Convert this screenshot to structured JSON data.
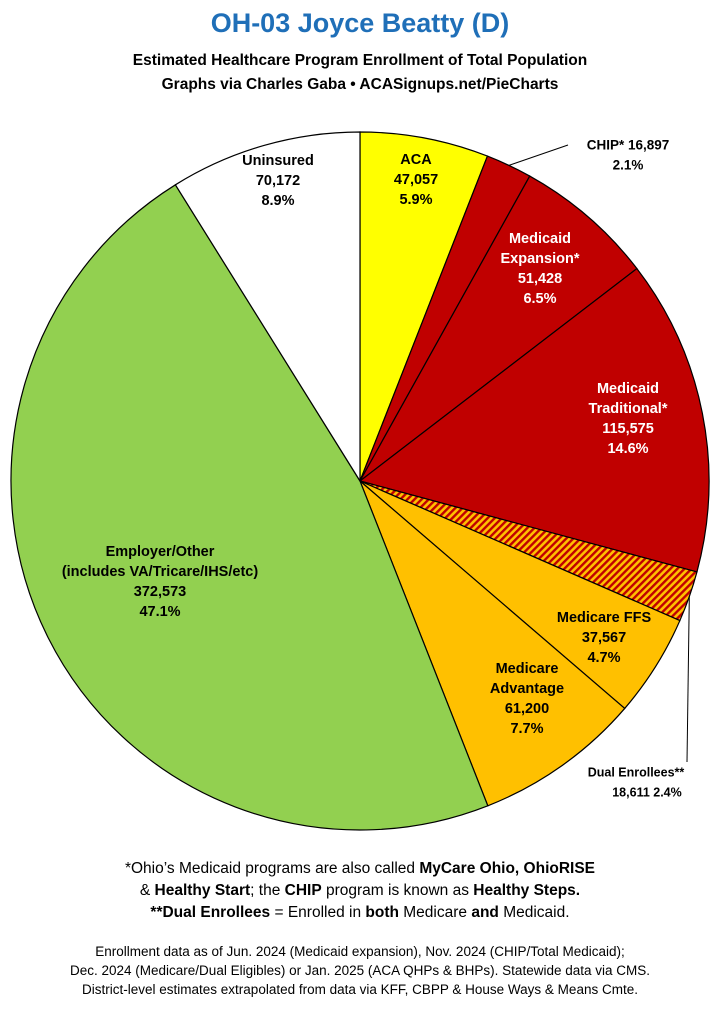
{
  "header": {
    "title": "OH-03 Joyce Beatty (D)",
    "subtitle_line1": "Estimated Healthcare Program Enrollment of Total Population",
    "subtitle_line2": "Graphs via Charles Gaba   •   ACASignups.net/PieCharts"
  },
  "chart_data": {
    "type": "pie",
    "start": "12 o'clock",
    "direction": "clockwise",
    "slices": [
      {
        "name": "ACA",
        "label_lines": [
          "ACA"
        ],
        "value": 47057,
        "value_text": "47,057",
        "percent": 5.9,
        "percent_text": "5.9%",
        "color": "#ffff00",
        "text_color": "#000000",
        "hatched": false
      },
      {
        "name": "CHIP*",
        "label_lines": [
          "CHIP* 16,897",
          "2.1%"
        ],
        "value": 16897,
        "value_text": "16,897",
        "percent": 2.1,
        "percent_text": "2.1%",
        "color": "#c00000",
        "text_color": "#000000",
        "hatched": false,
        "external_label": true
      },
      {
        "name": "Medicaid Expansion*",
        "label_lines": [
          "Medicaid",
          "Expansion*"
        ],
        "value": 51428,
        "value_text": "51,428",
        "percent": 6.5,
        "percent_text": "6.5%",
        "color": "#c00000",
        "text_color": "#ffffff",
        "hatched": false
      },
      {
        "name": "Medicaid Traditional*",
        "label_lines": [
          "Medicaid",
          "Traditional*"
        ],
        "value": 115575,
        "value_text": "115,575",
        "percent": 14.6,
        "percent_text": "14.6%",
        "color": "#c00000",
        "text_color": "#ffffff",
        "hatched": false
      },
      {
        "name": "Dual Enrollees**",
        "label_lines": [
          "Dual Enrollees**",
          "18,611 2.4%"
        ],
        "value": 18611,
        "value_text": "18,611",
        "percent": 2.4,
        "percent_text": "2.4%",
        "color": "#ffc000",
        "text_color": "#000000",
        "hatched": true,
        "hatch_color": "#c00000",
        "external_label": true
      },
      {
        "name": "Medicare FFS",
        "label_lines": [
          "Medicare FFS"
        ],
        "value": 37567,
        "value_text": "37,567",
        "percent": 4.7,
        "percent_text": "4.7%",
        "color": "#ffc000",
        "text_color": "#000000",
        "hatched": false
      },
      {
        "name": "Medicare Advantage",
        "label_lines": [
          "Medicare",
          "Advantage"
        ],
        "value": 61200,
        "value_text": "61,200",
        "percent": 7.7,
        "percent_text": "7.7%",
        "color": "#ffc000",
        "text_color": "#000000",
        "hatched": false
      },
      {
        "name": "Employer/Other",
        "label_lines": [
          "Employer/Other",
          "(includes VA/Tricare/IHS/etc)"
        ],
        "value": 372573,
        "value_text": "372,573",
        "percent": 47.1,
        "percent_text": "47.1%",
        "color": "#92d050",
        "text_color": "#000000",
        "hatched": false
      },
      {
        "name": "Uninsured",
        "label_lines": [
          "Uninsured"
        ],
        "value": 70172,
        "value_text": "70,172",
        "percent": 8.9,
        "percent_text": "8.9%",
        "color": "#ffffff",
        "text_color": "#000000",
        "hatched": false
      }
    ]
  },
  "notes": {
    "line1_a": "*Ohio’s Medicaid programs are also called ",
    "line1_b": "MyCare Ohio, OhioRISE",
    "line2_a": "& ",
    "line2_b": "Healthy Start",
    "line2_c": "; the ",
    "line2_d": "CHIP",
    "line2_e": " program is known as ",
    "line2_f": "Healthy Steps.",
    "line3_a": "**Dual Enrollees",
    "line3_b": " = Enrolled in ",
    "line3_c": "both",
    "line3_d": " Medicare ",
    "line3_e": "and",
    "line3_f": " Medicaid."
  },
  "footer": {
    "line1": "Enrollment data as of Jun. 2024 (Medicaid expansion), Nov. 2024 (CHIP/Total Medicaid);",
    "line2": "Dec. 2024 (Medicare/Dual Eligibles) or Jan. 2025 (ACA QHPs & BHPs). Statewide data via CMS.",
    "line3": "District-level estimates extrapolated from data via KFF, CBPP & House Ways & Means Cmte."
  }
}
